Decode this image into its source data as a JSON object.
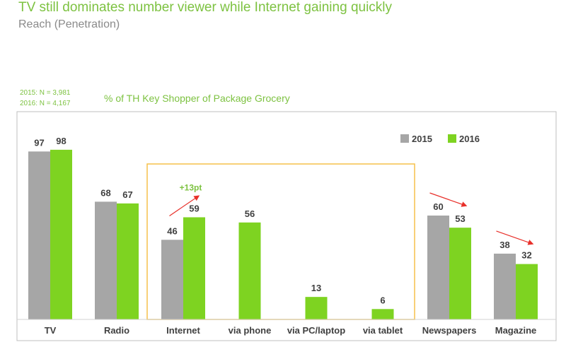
{
  "header": {
    "title": "TV still dominates number viewer while Internet gaining quickly",
    "subtitle": "Reach (Penetration)"
  },
  "notes": {
    "n2015": "2015: N = 3,981",
    "n2016": "2016: N = 4,167"
  },
  "colors": {
    "s2015": "#a6a6a6",
    "s2016": "#7ed321",
    "accent": "#7dc241",
    "highlight_box": "#f5c04a",
    "trend_arrow": "#e8302a"
  },
  "chart_data": {
    "type": "bar",
    "title": "% of TH Key Shopper of Package Grocery",
    "xlabel": "",
    "ylabel": "",
    "ylim": [
      0,
      100
    ],
    "categories": [
      "TV",
      "Radio",
      "Internet",
      "via phone",
      "via PC/laptop",
      "via tablet",
      "Newspapers",
      "Magazine"
    ],
    "series": [
      {
        "name": "2015",
        "values": [
          97,
          68,
          46,
          null,
          null,
          null,
          60,
          38
        ]
      },
      {
        "name": "2016",
        "values": [
          98,
          67,
          59,
          56,
          13,
          6,
          53,
          32
        ]
      }
    ],
    "annotations": [
      {
        "category": "Internet",
        "text": "+13pt",
        "direction": "up"
      },
      {
        "category": "Newspapers",
        "text": "",
        "direction": "down"
      },
      {
        "category": "Magazine",
        "text": "",
        "direction": "down"
      }
    ],
    "highlight_group": [
      "Internet",
      "via phone",
      "via PC/laptop",
      "via tablet"
    ],
    "legend_position": "top-right",
    "grid": false
  }
}
